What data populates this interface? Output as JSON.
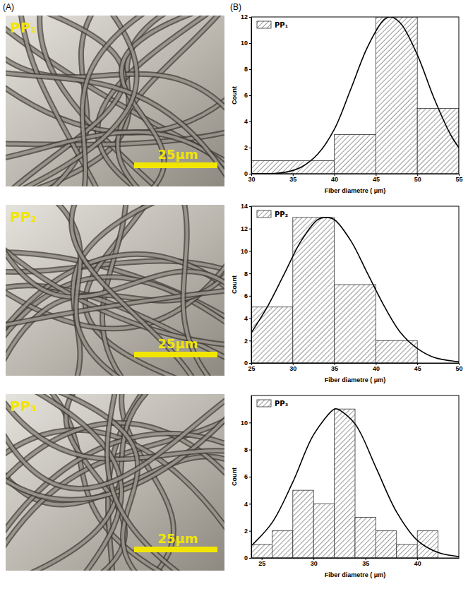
{
  "panel_labels": [
    "(A)",
    "(B)"
  ],
  "images": [
    {
      "label": "PP₁",
      "scale_bar": "25μm"
    },
    {
      "label": "PP₂",
      "scale_bar": "25μm"
    },
    {
      "label": "PP₃",
      "scale_bar": "25μm"
    }
  ],
  "chart_data": [
    {
      "type": "histogram",
      "bins": [
        30,
        40,
        45,
        50,
        55
      ],
      "series": [
        {
          "name": "PP₁",
          "type": "histogram",
          "color": "#333333",
          "values": [
            1,
            3,
            12,
            5
          ]
        },
        {
          "type": "line",
          "color": "#000000",
          "x": [
            30,
            32,
            34,
            36,
            38,
            40,
            42,
            44,
            46,
            46.8,
            48,
            50,
            52,
            54,
            55
          ],
          "values": [
            0,
            0,
            0.1,
            0.5,
            1.5,
            3.4,
            6.5,
            9.7,
            11.8,
            12,
            11.5,
            9.1,
            5.8,
            3.0,
            2.0
          ]
        }
      ],
      "x_label": "Fiber diametre ( μm)",
      "y_label": "Count",
      "xlim": [
        30,
        55
      ],
      "xticks": [
        30,
        35,
        40,
        45,
        50,
        55
      ],
      "ylim": [
        0,
        12
      ],
      "yticks": [
        0,
        2,
        4,
        6,
        8,
        10,
        12
      ],
      "legend": "upper left"
    },
    {
      "type": "histogram",
      "bins": [
        25,
        30,
        35,
        40,
        45
      ],
      "series": [
        {
          "name": "PP₂",
          "type": "histogram",
          "color": "#333333",
          "values": [
            5,
            13,
            7,
            2
          ]
        },
        {
          "type": "line",
          "color": "#000000",
          "x": [
            25,
            27,
            29,
            31,
            33,
            34,
            35,
            37,
            39,
            41,
            43,
            45,
            47,
            49,
            50
          ],
          "values": [
            2.7,
            5.1,
            8.0,
            10.9,
            12.8,
            13,
            12.8,
            10.9,
            8.0,
            5.1,
            2.7,
            1.3,
            0.5,
            0.2,
            0.1
          ]
        }
      ],
      "x_label": "Fiber diametre ( μm)",
      "y_label": "Count",
      "xlim": [
        25,
        50
      ],
      "xticks": [
        25,
        30,
        35,
        40,
        45,
        50
      ],
      "ylim": [
        0,
        14
      ],
      "yticks": [
        0,
        2,
        4,
        6,
        8,
        10,
        12,
        14
      ],
      "legend": "upper left"
    },
    {
      "type": "histogram",
      "bins": [
        24,
        26,
        28,
        30,
        32,
        34,
        36,
        38,
        40,
        42
      ],
      "series": [
        {
          "name": "PP₃",
          "type": "histogram",
          "color": "#333333",
          "values": [
            1,
            2,
            5,
            4,
            11,
            3,
            2,
            1,
            2
          ]
        },
        {
          "type": "line",
          "color": "#000000",
          "x": [
            24,
            26,
            28,
            30,
            32,
            32.3,
            34,
            36,
            38,
            40,
            42,
            44
          ],
          "values": [
            0.9,
            2.6,
            5.6,
            9.1,
            11.0,
            11,
            9.9,
            6.7,
            3.4,
            1.3,
            0.4,
            0.1
          ]
        }
      ],
      "x_label": "Fiber diametre ( μm)",
      "y_label": "Count",
      "xlim": [
        24,
        44
      ],
      "xticks": [
        25,
        30,
        35,
        40
      ],
      "ylim": [
        0,
        12
      ],
      "yticks": [
        0,
        2,
        4,
        6,
        8,
        10
      ],
      "legend": "upper left"
    }
  ]
}
